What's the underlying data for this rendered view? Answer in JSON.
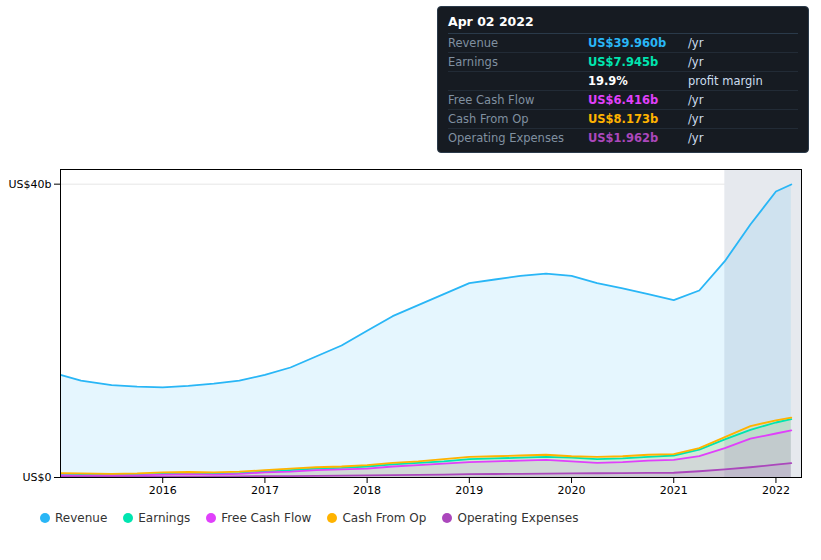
{
  "chart_data": {
    "type": "line",
    "x": [
      2015.0,
      2015.2,
      2015.5,
      2015.75,
      2016.0,
      2016.25,
      2016.5,
      2016.75,
      2017.0,
      2017.25,
      2017.5,
      2017.75,
      2018.0,
      2018.25,
      2018.5,
      2018.75,
      2019.0,
      2019.25,
      2019.5,
      2019.75,
      2020.0,
      2020.25,
      2020.5,
      2020.75,
      2021.0,
      2021.25,
      2021.5,
      2021.75,
      2022.0,
      2022.15
    ],
    "series": [
      {
        "name": "Revenue",
        "color": "#29b6f6",
        "values": [
          14.0,
          13.2,
          12.6,
          12.4,
          12.3,
          12.5,
          12.8,
          13.2,
          14.0,
          15.0,
          16.5,
          18.0,
          20.0,
          22.0,
          23.5,
          25.0,
          26.5,
          27.0,
          27.5,
          27.8,
          27.5,
          26.5,
          25.8,
          25.0,
          24.2,
          25.5,
          29.5,
          34.5,
          39.0,
          39.96
        ]
      },
      {
        "name": "Earnings",
        "color": "#00e5b0",
        "values": [
          0.5,
          0.45,
          0.4,
          0.4,
          0.5,
          0.55,
          0.5,
          0.6,
          0.8,
          1.0,
          1.2,
          1.3,
          1.5,
          1.8,
          2.0,
          2.2,
          2.5,
          2.6,
          2.7,
          2.8,
          2.7,
          2.5,
          2.6,
          2.8,
          3.0,
          3.8,
          5.2,
          6.5,
          7.5,
          7.945
        ]
      },
      {
        "name": "Free Cash Flow",
        "color": "#e040fb",
        "values": [
          0.3,
          0.25,
          0.3,
          0.3,
          0.4,
          0.45,
          0.4,
          0.5,
          0.7,
          0.8,
          1.0,
          1.1,
          1.2,
          1.5,
          1.7,
          1.9,
          2.1,
          2.2,
          2.3,
          2.4,
          2.2,
          2.0,
          2.1,
          2.3,
          2.4,
          2.9,
          4.0,
          5.3,
          6.0,
          6.416
        ]
      },
      {
        "name": "Cash From Op",
        "color": "#ffb300",
        "values": [
          0.6,
          0.55,
          0.5,
          0.55,
          0.7,
          0.75,
          0.7,
          0.8,
          1.0,
          1.2,
          1.4,
          1.5,
          1.7,
          2.0,
          2.2,
          2.5,
          2.8,
          2.9,
          3.0,
          3.1,
          2.9,
          2.8,
          2.9,
          3.1,
          3.2,
          4.0,
          5.5,
          7.0,
          7.8,
          8.173
        ]
      },
      {
        "name": "Operating Expenses",
        "color": "#ab47bc",
        "values": [
          0.1,
          0.1,
          0.1,
          0.1,
          0.12,
          0.13,
          0.13,
          0.15,
          0.18,
          0.2,
          0.22,
          0.25,
          0.28,
          0.32,
          0.36,
          0.4,
          0.45,
          0.48,
          0.5,
          0.52,
          0.55,
          0.58,
          0.6,
          0.62,
          0.65,
          0.85,
          1.1,
          1.4,
          1.75,
          1.962
        ]
      }
    ],
    "xlim": [
      2015.0,
      2022.25
    ],
    "ylim": [
      0.0,
      42.0
    ],
    "xticks": [
      2016,
      2017,
      2018,
      2019,
      2020,
      2021,
      2022
    ],
    "yticks": [
      {
        "value": 0,
        "label": "US$0"
      },
      {
        "value": 40,
        "label": "US$40b"
      }
    ],
    "grid": true,
    "legend": "bottom",
    "highlight_range": [
      2021.5,
      2022.25
    ],
    "annotations": [
      {
        "title": "Apr 02 2022",
        "rows": [
          {
            "label": "Revenue",
            "value": "US$39.960b",
            "suffix": "/yr",
            "color": "#29b6f6"
          },
          {
            "label": "Earnings",
            "value": "US$7.945b",
            "suffix": "/yr",
            "color": "#00e5b0"
          },
          {
            "value": "19.9%",
            "suffix": "profit margin",
            "color": "#ffffff"
          },
          {
            "label": "Free Cash Flow",
            "value": "US$6.416b",
            "suffix": "/yr",
            "color": "#e040fb"
          },
          {
            "label": "Cash From Op",
            "value": "US$8.173b",
            "suffix": "/yr",
            "color": "#ffb300"
          },
          {
            "label": "Operating Expenses",
            "value": "US$1.962b",
            "suffix": "/yr",
            "color": "#ab47bc"
          }
        ]
      }
    ]
  }
}
